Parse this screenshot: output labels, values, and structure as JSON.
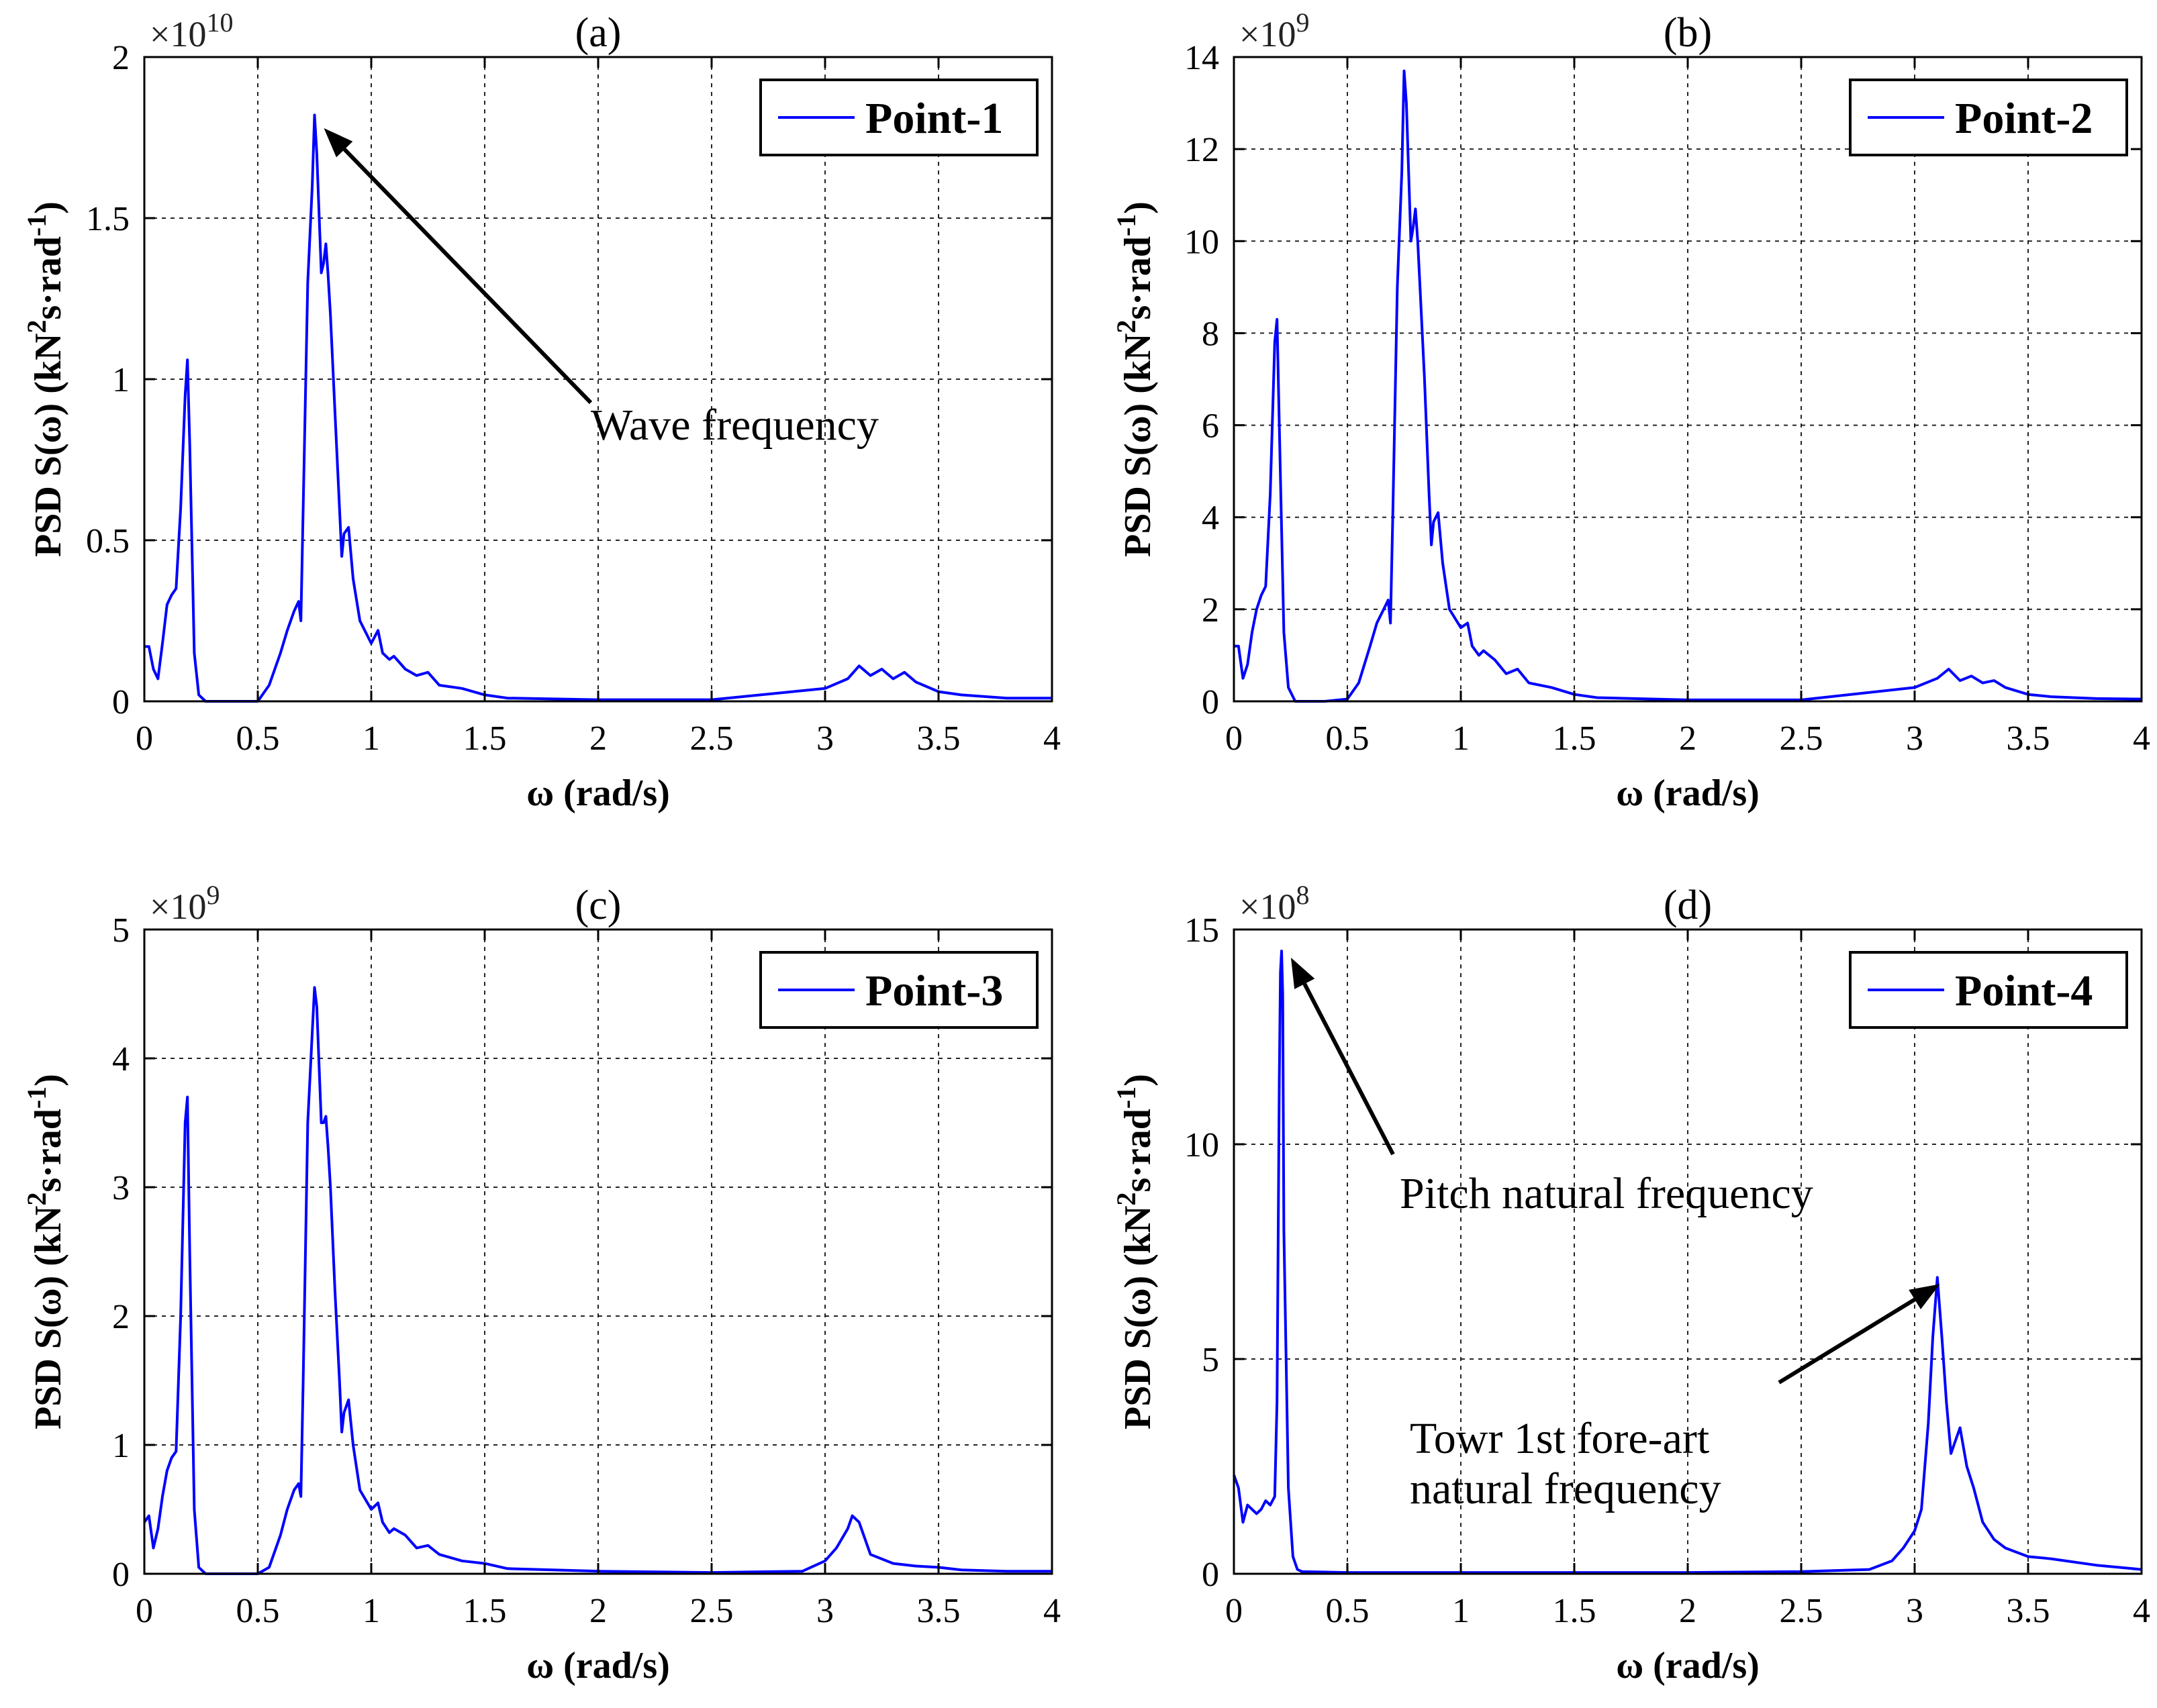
{
  "figure": {
    "colors": {
      "line": "#0000ff",
      "axis": "#000000",
      "grid": "#000000",
      "background": "#ffffff"
    }
  },
  "chart_data": [
    {
      "panel": "a",
      "type": "line",
      "title": "(a)",
      "xlabel": "ω (rad/s)",
      "ylabel": "PSD S(ω) (kN²s·rad⁻¹)",
      "ylabel_parts": {
        "main": "PSD S(ω) (kN",
        "sup1": "2",
        "mid": "s·rad",
        "sup2": "-1",
        "end": ")"
      },
      "xlim": [
        0,
        4
      ],
      "ylim": [
        0,
        2
      ],
      "xticks": [
        0,
        0.5,
        1,
        1.5,
        2,
        2.5,
        3,
        3.5,
        4
      ],
      "xtick_labels": [
        "0",
        "0.5",
        "1",
        "1.5",
        "2",
        "2.5",
        "3",
        "3.5",
        "4"
      ],
      "yticks": [
        0,
        0.5,
        1,
        1.5,
        2
      ],
      "ytick_labels": [
        "0",
        "0.5",
        "1",
        "1.5",
        "2"
      ],
      "exponent": {
        "base": "×10",
        "power": "10"
      },
      "grid": true,
      "legend": {
        "label": "Point-1",
        "position": "top-right"
      },
      "annotations": [
        {
          "lines": [
            "Wave frequency"
          ],
          "arrow_target": [
            0.75,
            1.8
          ]
        }
      ],
      "series": [
        {
          "name": "Point-1",
          "x": [
            0,
            0.02,
            0.04,
            0.06,
            0.08,
            0.1,
            0.12,
            0.14,
            0.16,
            0.18,
            0.19,
            0.2,
            0.22,
            0.24,
            0.27,
            0.3,
            0.4,
            0.5,
            0.55,
            0.6,
            0.63,
            0.66,
            0.68,
            0.69,
            0.7,
            0.72,
            0.74,
            0.75,
            0.76,
            0.78,
            0.79,
            0.8,
            0.81,
            0.82,
            0.84,
            0.86,
            0.87,
            0.88,
            0.9,
            0.92,
            0.95,
            1.0,
            1.03,
            1.05,
            1.08,
            1.1,
            1.15,
            1.2,
            1.25,
            1.3,
            1.4,
            1.5,
            1.6,
            2.0,
            2.5,
            3.0,
            3.1,
            3.15,
            3.2,
            3.25,
            3.3,
            3.35,
            3.4,
            3.5,
            3.6,
            3.8,
            4.0
          ],
          "values": [
            0.17,
            0.17,
            0.1,
            0.07,
            0.18,
            0.3,
            0.33,
            0.35,
            0.6,
            0.95,
            1.06,
            0.8,
            0.15,
            0.02,
            0.0,
            0.0,
            0.0,
            0.0,
            0.05,
            0.15,
            0.22,
            0.28,
            0.31,
            0.25,
            0.6,
            1.3,
            1.6,
            1.82,
            1.7,
            1.33,
            1.36,
            1.42,
            1.32,
            1.2,
            0.9,
            0.6,
            0.45,
            0.52,
            0.54,
            0.38,
            0.25,
            0.18,
            0.22,
            0.15,
            0.13,
            0.14,
            0.1,
            0.08,
            0.09,
            0.05,
            0.04,
            0.02,
            0.01,
            0.005,
            0.005,
            0.04,
            0.07,
            0.11,
            0.08,
            0.1,
            0.07,
            0.09,
            0.06,
            0.03,
            0.02,
            0.01,
            0.01
          ]
        }
      ]
    },
    {
      "panel": "b",
      "type": "line",
      "title": "(b)",
      "xlabel": "ω (rad/s)",
      "ylabel": "PSD S(ω) (kN²s·rad⁻¹)",
      "ylabel_parts": {
        "main": "PSD S(ω) (kN",
        "sup1": "2",
        "mid": "s·rad",
        "sup2": "-1",
        "end": ")"
      },
      "xlim": [
        0,
        4
      ],
      "ylim": [
        0,
        14
      ],
      "xticks": [
        0,
        0.5,
        1,
        1.5,
        2,
        2.5,
        3,
        3.5,
        4
      ],
      "xtick_labels": [
        "0",
        "0.5",
        "1",
        "1.5",
        "2",
        "2.5",
        "3",
        "3.5",
        "4"
      ],
      "yticks": [
        0,
        2,
        4,
        6,
        8,
        10,
        12,
        14
      ],
      "ytick_labels": [
        "0",
        "2",
        "4",
        "6",
        "8",
        "10",
        "12",
        "14"
      ],
      "exponent": {
        "base": "×10",
        "power": "9"
      },
      "grid": true,
      "legend": {
        "label": "Point-2",
        "position": "top-right"
      },
      "annotations": [],
      "series": [
        {
          "name": "Point-2",
          "x": [
            0,
            0.02,
            0.04,
            0.06,
            0.08,
            0.1,
            0.12,
            0.14,
            0.16,
            0.18,
            0.19,
            0.2,
            0.22,
            0.24,
            0.27,
            0.3,
            0.4,
            0.5,
            0.55,
            0.6,
            0.63,
            0.66,
            0.68,
            0.69,
            0.7,
            0.72,
            0.74,
            0.75,
            0.76,
            0.78,
            0.79,
            0.8,
            0.81,
            0.82,
            0.84,
            0.86,
            0.87,
            0.88,
            0.9,
            0.92,
            0.95,
            1.0,
            1.03,
            1.05,
            1.08,
            1.1,
            1.15,
            1.2,
            1.25,
            1.3,
            1.4,
            1.5,
            1.6,
            2.0,
            2.5,
            3.0,
            3.1,
            3.15,
            3.2,
            3.25,
            3.3,
            3.35,
            3.4,
            3.5,
            3.6,
            3.8,
            4.0
          ],
          "values": [
            1.2,
            1.2,
            0.5,
            0.8,
            1.5,
            2.0,
            2.3,
            2.5,
            4.5,
            7.8,
            8.3,
            6.0,
            1.5,
            0.3,
            0.0,
            0.0,
            0.0,
            0.05,
            0.4,
            1.2,
            1.7,
            2.0,
            2.2,
            1.7,
            4.0,
            9.0,
            11.5,
            13.7,
            13.0,
            10.0,
            10.3,
            10.7,
            10.0,
            9.0,
            7.0,
            4.5,
            3.4,
            3.9,
            4.1,
            3.0,
            2.0,
            1.6,
            1.7,
            1.2,
            1.0,
            1.1,
            0.9,
            0.6,
            0.7,
            0.4,
            0.3,
            0.15,
            0.08,
            0.03,
            0.03,
            0.3,
            0.5,
            0.7,
            0.45,
            0.55,
            0.4,
            0.45,
            0.3,
            0.15,
            0.1,
            0.06,
            0.05
          ]
        }
      ]
    },
    {
      "panel": "c",
      "type": "line",
      "title": "(c)",
      "xlabel": "ω (rad/s)",
      "ylabel": "PSD S(ω) (kN²s·rad⁻¹)",
      "ylabel_parts": {
        "main": "PSD S(ω) (kN",
        "sup1": "2",
        "mid": "s·rad",
        "sup2": "-1",
        "end": ")"
      },
      "xlim": [
        0,
        4
      ],
      "ylim": [
        0,
        5
      ],
      "xticks": [
        0,
        0.5,
        1,
        1.5,
        2,
        2.5,
        3,
        3.5,
        4
      ],
      "xtick_labels": [
        "0",
        "0.5",
        "1",
        "1.5",
        "2",
        "2.5",
        "3",
        "3.5",
        "4"
      ],
      "yticks": [
        0,
        1,
        2,
        3,
        4,
        5
      ],
      "ytick_labels": [
        "0",
        "1",
        "2",
        "3",
        "4",
        "5"
      ],
      "exponent": {
        "base": "×10",
        "power": "9"
      },
      "grid": true,
      "legend": {
        "label": "Point-3",
        "position": "top-right"
      },
      "annotations": [],
      "series": [
        {
          "name": "Point-3",
          "x": [
            0,
            0.02,
            0.04,
            0.06,
            0.08,
            0.1,
            0.12,
            0.14,
            0.16,
            0.18,
            0.19,
            0.2,
            0.22,
            0.24,
            0.27,
            0.3,
            0.4,
            0.5,
            0.55,
            0.6,
            0.63,
            0.66,
            0.68,
            0.69,
            0.7,
            0.72,
            0.74,
            0.75,
            0.76,
            0.78,
            0.79,
            0.8,
            0.81,
            0.82,
            0.84,
            0.86,
            0.87,
            0.88,
            0.9,
            0.92,
            0.95,
            1.0,
            1.03,
            1.05,
            1.08,
            1.1,
            1.15,
            1.2,
            1.25,
            1.3,
            1.4,
            1.5,
            1.6,
            2.0,
            2.5,
            2.9,
            3.0,
            3.05,
            3.1,
            3.12,
            3.15,
            3.2,
            3.3,
            3.4,
            3.5,
            3.6,
            3.8,
            4.0
          ],
          "values": [
            0.4,
            0.45,
            0.2,
            0.35,
            0.6,
            0.8,
            0.9,
            0.95,
            2.0,
            3.5,
            3.7,
            2.5,
            0.5,
            0.05,
            0.0,
            0.0,
            0.0,
            0.0,
            0.05,
            0.3,
            0.5,
            0.65,
            0.7,
            0.6,
            1.5,
            3.5,
            4.2,
            4.55,
            4.4,
            3.5,
            3.5,
            3.55,
            3.3,
            3.0,
            2.2,
            1.5,
            1.1,
            1.25,
            1.35,
            1.0,
            0.65,
            0.5,
            0.55,
            0.4,
            0.32,
            0.35,
            0.3,
            0.2,
            0.22,
            0.15,
            0.1,
            0.08,
            0.04,
            0.02,
            0.01,
            0.02,
            0.1,
            0.2,
            0.35,
            0.45,
            0.4,
            0.15,
            0.08,
            0.06,
            0.05,
            0.03,
            0.02,
            0.02
          ]
        }
      ]
    },
    {
      "panel": "d",
      "type": "line",
      "title": "(d)",
      "xlabel": "ω (rad/s)",
      "ylabel": "PSD S(ω) (kN²s·rad⁻¹)",
      "ylabel_parts": {
        "main": "PSD S(ω) (kN",
        "sup1": "2",
        "mid": "s·rad",
        "sup2": "-1",
        "end": ")"
      },
      "xlim": [
        0,
        4
      ],
      "ylim": [
        0,
        15
      ],
      "xticks": [
        0,
        0.5,
        1,
        1.5,
        2,
        2.5,
        3,
        3.5,
        4
      ],
      "xtick_labels": [
        "0",
        "0.5",
        "1",
        "1.5",
        "2",
        "2.5",
        "3",
        "3.5",
        "4"
      ],
      "yticks": [
        0,
        5,
        10,
        15
      ],
      "ytick_labels": [
        "0",
        "5",
        "10",
        "15"
      ],
      "exponent": {
        "base": "×10",
        "power": "8"
      },
      "grid": true,
      "legend": {
        "label": "Point-4",
        "position": "top-right"
      },
      "annotations": [
        {
          "lines": [
            "Pitch natural frequency"
          ],
          "arrow_target": [
            0.21,
            14.5
          ]
        },
        {
          "lines": [
            "Towr 1st fore-art",
            "natural frequency"
          ],
          "arrow_target": [
            3.07,
            6.9
          ]
        }
      ],
      "series": [
        {
          "name": "Point-4",
          "x": [
            0,
            0.02,
            0.04,
            0.06,
            0.08,
            0.1,
            0.12,
            0.14,
            0.16,
            0.18,
            0.19,
            0.2,
            0.205,
            0.21,
            0.215,
            0.22,
            0.24,
            0.26,
            0.28,
            0.3,
            0.5,
            1.0,
            1.5,
            2.0,
            2.5,
            2.8,
            2.9,
            2.95,
            3.0,
            3.03,
            3.06,
            3.08,
            3.1,
            3.12,
            3.14,
            3.16,
            3.18,
            3.2,
            3.23,
            3.26,
            3.3,
            3.35,
            3.4,
            3.5,
            3.6,
            3.8,
            4.0
          ],
          "values": [
            2.3,
            2.0,
            1.2,
            1.6,
            1.5,
            1.4,
            1.5,
            1.7,
            1.6,
            1.8,
            4.0,
            11.5,
            14.0,
            14.5,
            13.5,
            8.0,
            2.0,
            0.4,
            0.1,
            0.05,
            0.03,
            0.03,
            0.03,
            0.03,
            0.05,
            0.1,
            0.3,
            0.6,
            1.0,
            1.5,
            3.5,
            5.5,
            6.9,
            5.5,
            4.0,
            2.8,
            3.1,
            3.4,
            2.5,
            2.0,
            1.2,
            0.8,
            0.6,
            0.4,
            0.35,
            0.2,
            0.1
          ]
        }
      ]
    }
  ]
}
